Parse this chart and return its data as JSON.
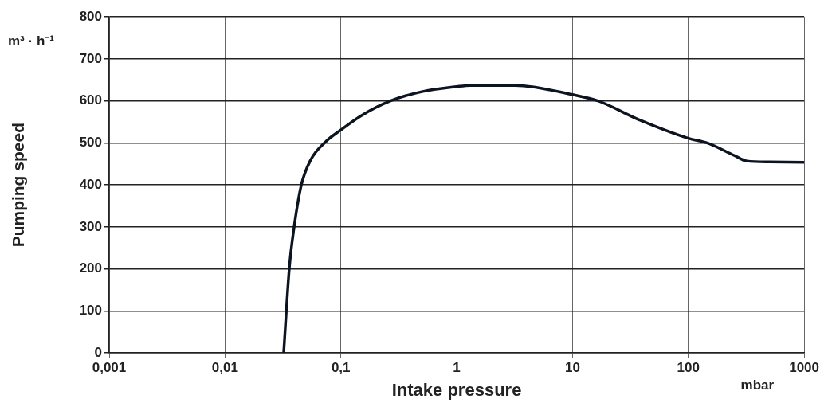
{
  "chart_data": {
    "type": "line",
    "xlabel": "Intake pressure",
    "ylabel": "Pumping speed",
    "annotations": [
      "m³ · h⁻¹",
      "mbar"
    ],
    "log": "x",
    "grid": true,
    "legend": false,
    "marker": "none",
    "line_style": "solid",
    "xlim": [
      0.001,
      1000
    ],
    "xticks": [
      {
        "value": 0.001,
        "label": "0,001"
      },
      {
        "value": 0.01,
        "label": "0,01"
      },
      {
        "value": 0.1,
        "label": "0,1"
      },
      1,
      10,
      100,
      1000
    ],
    "ylim": [
      0,
      800
    ],
    "yticks": [
      0,
      100,
      200,
      300,
      400,
      500,
      600,
      700,
      800
    ],
    "series": [
      {
        "color": "#0d1421",
        "x": [
          0.0321,
          0.0359,
          0.0395,
          0.0456,
          0.055,
          0.0733,
          0.1,
          0.15,
          0.268,
          0.5,
          1,
          1.31,
          3.2,
          10,
          16.6,
          38.4,
          100,
          145,
          250,
          320,
          500,
          1000
        ],
        "values": [
          0,
          202,
          300,
          400,
          460,
          502,
          531,
          565,
          600,
          622,
          634,
          637,
          637,
          615,
          600,
          554,
          511,
          500,
          470,
          457,
          455,
          454
        ]
      }
    ]
  }
}
